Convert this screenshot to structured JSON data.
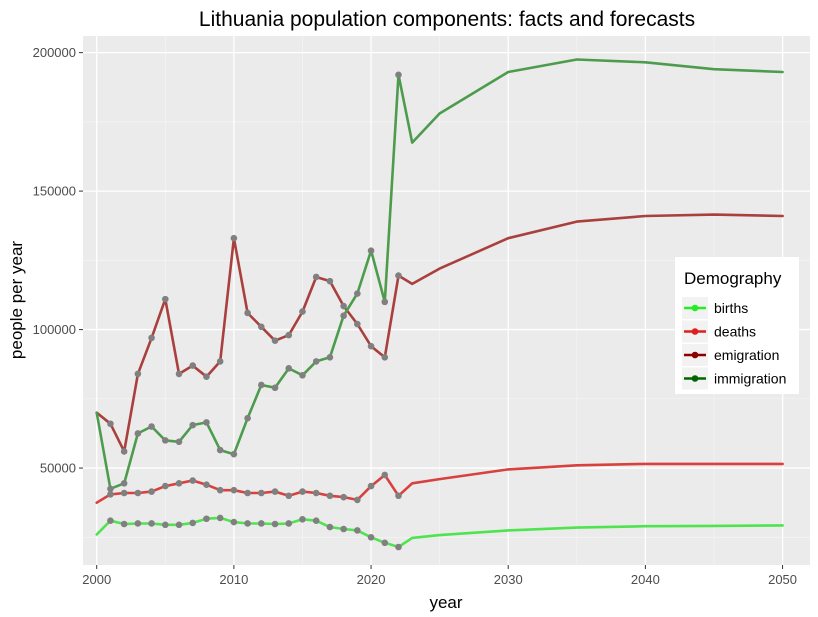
{
  "chart_data": {
    "type": "line",
    "title": "Lithuania population components: facts and forecasts",
    "xlabel": "year",
    "ylabel": "people per year",
    "xlim": [
      1999,
      2052
    ],
    "ylim": [
      15000,
      206000
    ],
    "x_ticks": [
      2000,
      2010,
      2020,
      2030,
      2040,
      2050
    ],
    "y_ticks": [
      50000,
      100000,
      150000,
      200000
    ],
    "grid": true,
    "background": "#ebebeb",
    "legend": {
      "title": "Demography",
      "placement": "right",
      "entries": [
        {
          "label": "births",
          "color": "#22ee22"
        },
        {
          "label": "deaths",
          "color": "#dd1f1f"
        },
        {
          "label": "emigration",
          "color": "#8b0000"
        },
        {
          "label": "immigration",
          "color": "#006400"
        }
      ]
    },
    "series": [
      {
        "name": "births",
        "color": "#4fe44f",
        "x": [
          2000,
          2001,
          2002,
          2003,
          2004,
          2005,
          2006,
          2007,
          2008,
          2009,
          2010,
          2011,
          2012,
          2013,
          2014,
          2015,
          2016,
          2017,
          2018,
          2019,
          2020,
          2021,
          2022,
          2023,
          2025,
          2030,
          2035,
          2040,
          2045,
          2050
        ],
        "values": [
          26000,
          31000,
          29800,
          30000,
          30000,
          29500,
          29500,
          30200,
          31700,
          32000,
          30500,
          30000,
          30000,
          29800,
          30000,
          31500,
          31000,
          28700,
          28000,
          27500,
          25000,
          23000,
          21500,
          24800,
          25800,
          27500,
          28500,
          29000,
          29100,
          29300
        ],
        "observed_through": 2022
      },
      {
        "name": "deaths",
        "color": "#d9413f",
        "x": [
          2000,
          2001,
          2002,
          2003,
          2004,
          2005,
          2006,
          2007,
          2008,
          2009,
          2010,
          2011,
          2012,
          2013,
          2014,
          2015,
          2016,
          2017,
          2018,
          2019,
          2020,
          2021,
          2022,
          2023,
          2025,
          2030,
          2035,
          2040,
          2045,
          2050
        ],
        "values": [
          37500,
          40500,
          41000,
          41000,
          41500,
          43500,
          44500,
          45500,
          44000,
          42000,
          42000,
          41000,
          41000,
          41500,
          40000,
          41500,
          41000,
          40000,
          39500,
          38500,
          43500,
          47500,
          40000,
          44500,
          46000,
          49500,
          51000,
          51500,
          51500,
          51500
        ],
        "observed_through": 2022
      },
      {
        "name": "emigration",
        "color": "#a9403e",
        "x": [
          2000,
          2001,
          2002,
          2003,
          2004,
          2005,
          2006,
          2007,
          2008,
          2009,
          2010,
          2011,
          2012,
          2013,
          2014,
          2015,
          2016,
          2017,
          2018,
          2019,
          2020,
          2021,
          2022,
          2023,
          2025,
          2030,
          2035,
          2040,
          2045,
          2050
        ],
        "values": [
          70000,
          66000,
          56000,
          84000,
          97000,
          111000,
          84000,
          87000,
          83000,
          88500,
          133000,
          106000,
          101000,
          96000,
          98000,
          106500,
          119000,
          117500,
          108500,
          102000,
          94000,
          90000,
          119500,
          116500,
          122000,
          133000,
          139000,
          141000,
          141500,
          141000
        ],
        "observed_through": 2022
      },
      {
        "name": "immigration",
        "color": "#4d9c4d",
        "x": [
          2000,
          2001,
          2002,
          2003,
          2004,
          2005,
          2006,
          2007,
          2008,
          2009,
          2010,
          2011,
          2012,
          2013,
          2014,
          2015,
          2016,
          2017,
          2018,
          2019,
          2020,
          2021,
          2022,
          2023,
          2025,
          2030,
          2035,
          2040,
          2045,
          2050
        ],
        "values": [
          70000,
          42500,
          44500,
          62500,
          65000,
          60000,
          59500,
          65500,
          66500,
          56500,
          55000,
          68000,
          80000,
          79000,
          86000,
          83500,
          88500,
          90000,
          105000,
          113000,
          128500,
          110000,
          192000,
          167500,
          178000,
          193000,
          197500,
          196500,
          194000,
          193000
        ],
        "observed_through": 2022
      }
    ]
  }
}
